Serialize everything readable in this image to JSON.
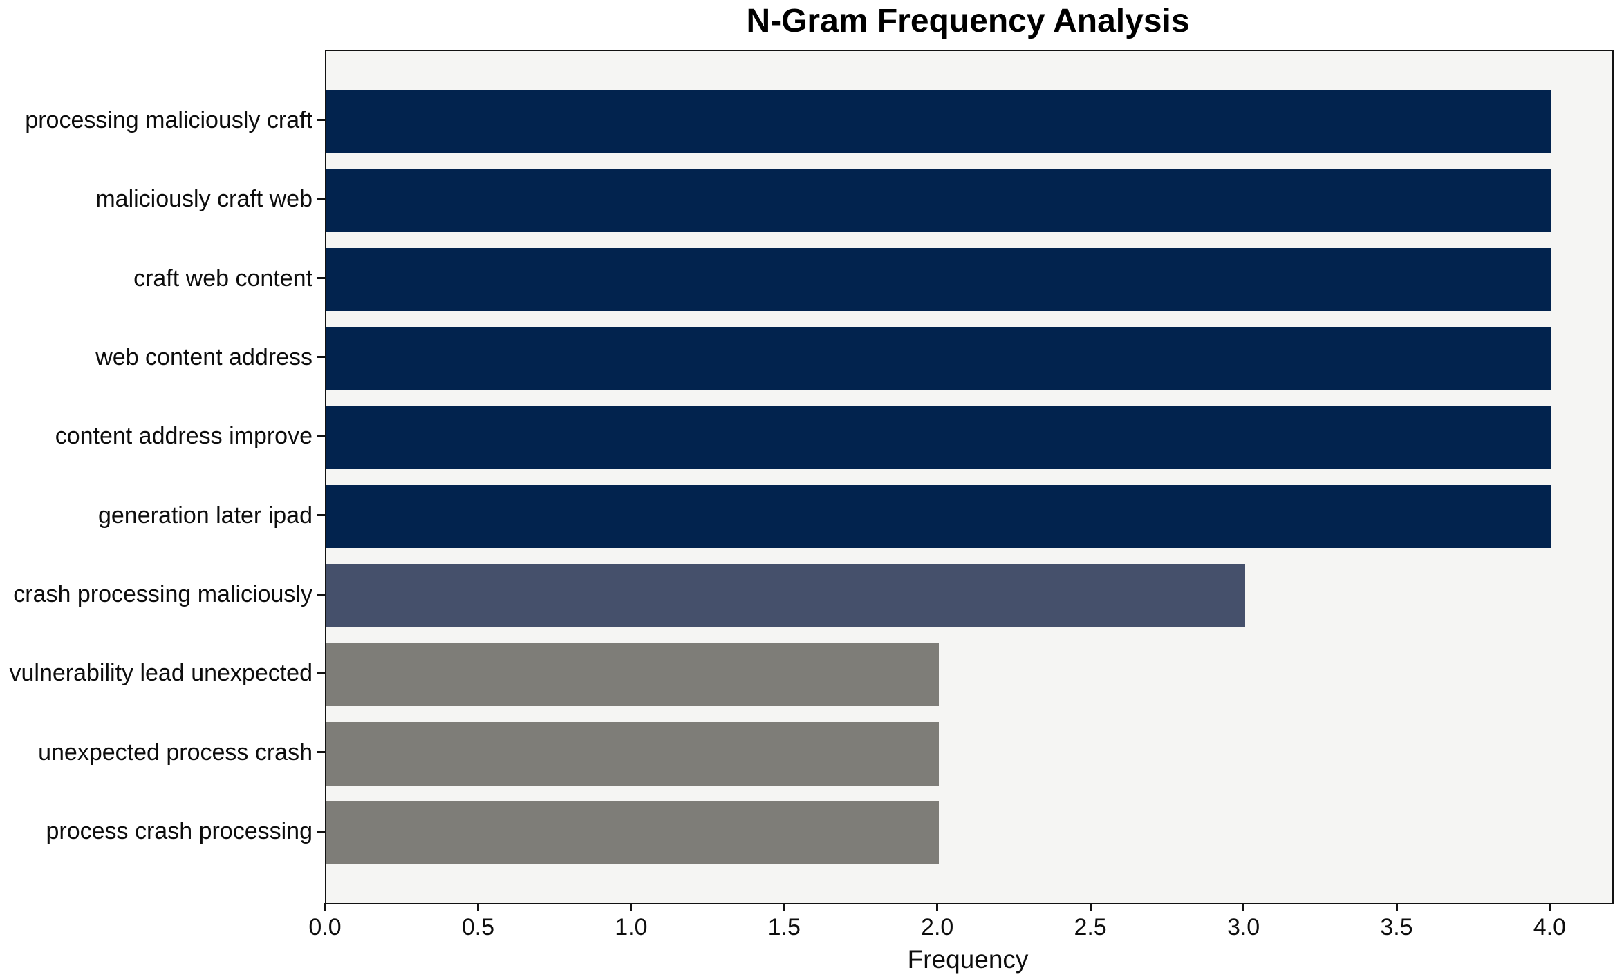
{
  "chart_data": {
    "type": "bar",
    "orientation": "horizontal",
    "title": "N-Gram Frequency Analysis",
    "xlabel": "Frequency",
    "ylabel": "",
    "categories": [
      "processing maliciously craft",
      "maliciously craft web",
      "craft web content",
      "web content address",
      "content address improve",
      "generation later ipad",
      "crash processing maliciously",
      "vulnerability lead unexpected",
      "unexpected process crash",
      "process crash processing"
    ],
    "values": [
      4,
      4,
      4,
      4,
      4,
      4,
      3,
      2,
      2,
      2
    ],
    "bar_colors": [
      "#02234E",
      "#02234E",
      "#02234E",
      "#02234E",
      "#02234E",
      "#02234E",
      "#45506B",
      "#7E7D78",
      "#7E7D78",
      "#7E7D78"
    ],
    "xlim": [
      0,
      4.2
    ],
    "xtick_labels": [
      "0.0",
      "0.5",
      "1.0",
      "1.5",
      "2.0",
      "2.5",
      "3.0",
      "3.5",
      "4.0"
    ],
    "grid": false,
    "legend": "none",
    "plot_background": "#F5F5F3",
    "figure_background": "#FFFFFF",
    "spine_color": "#121212"
  }
}
